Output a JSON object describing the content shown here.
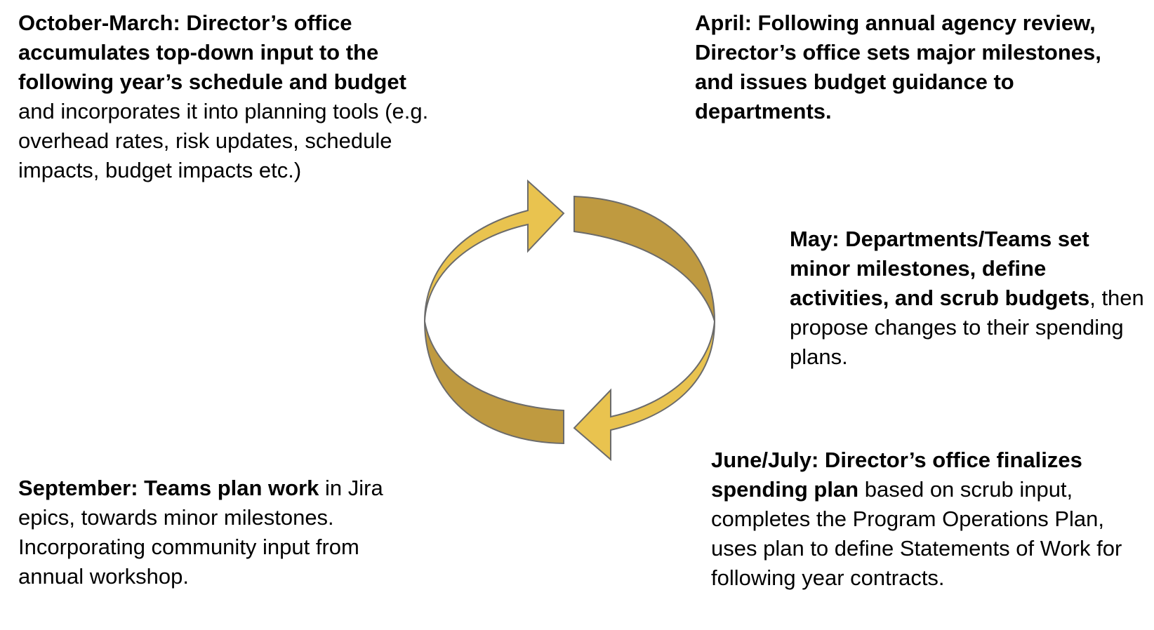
{
  "colors": {
    "arrow_light": "#E9C34F",
    "arrow_dark": "#BF9A40",
    "arrow_outline": "#6b6b6b",
    "text": "#000000",
    "background": "#ffffff"
  },
  "stages": {
    "oct_mar": {
      "bold": "October-March: Director’s office accumulates top-down input to the following year’s schedule and budget",
      "rest": " and incorporates it into planning tools (e.g. overhead rates, risk updates, schedule impacts, budget impacts etc.)"
    },
    "april": {
      "bold": "April: Following annual agency review, Director’s office sets major  milestones, and issues budget guidance to departments.",
      "rest": ""
    },
    "may": {
      "bold": "May: Departments/Teams set minor milestones, define activities, and scrub budgets",
      "rest": ", then propose changes to their spending plans."
    },
    "june_july": {
      "bold": "June/July: Director’s office finalizes spending plan",
      "rest": " based on scrub input, completes the Program Operations Plan, uses plan to define Statements of Work for following year contracts."
    },
    "september": {
      "bold": "September: Teams plan work",
      "rest": " in Jira epics, towards minor milestones. Incorporating community input from annual workshop."
    }
  }
}
